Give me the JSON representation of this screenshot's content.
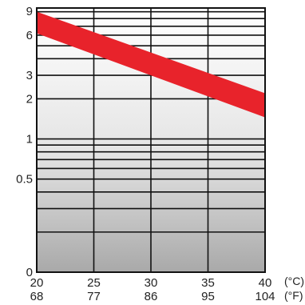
{
  "chart_data": {
    "type": "area",
    "title": "",
    "xlabel": "",
    "ylabel": "",
    "y_scale": "log",
    "x_celsius": {
      "range": [
        20,
        40
      ],
      "ticks": [
        "20",
        "25",
        "30",
        "35",
        "40"
      ],
      "unit": "(°C)"
    },
    "x_fahrenheit": {
      "ticks": [
        "68",
        "77",
        "86",
        "95",
        "104"
      ],
      "unit": "(°F)"
    },
    "y_ticks": [
      "9",
      "6",
      "3",
      "2",
      "1",
      "0.5",
      "0"
    ],
    "y_gridlines": [
      9,
      8,
      7,
      6,
      5,
      4,
      3,
      2,
      1,
      0.9,
      0.8,
      0.7,
      0.6,
      0.5,
      0.4,
      0.3,
      0.2,
      0.1
    ],
    "grid": true,
    "series": [
      {
        "color": "#e8232b",
        "x": [
          20,
          40
        ],
        "upper": [
          9,
          2.2
        ],
        "lower": [
          6.2,
          1.45
        ]
      }
    ]
  }
}
